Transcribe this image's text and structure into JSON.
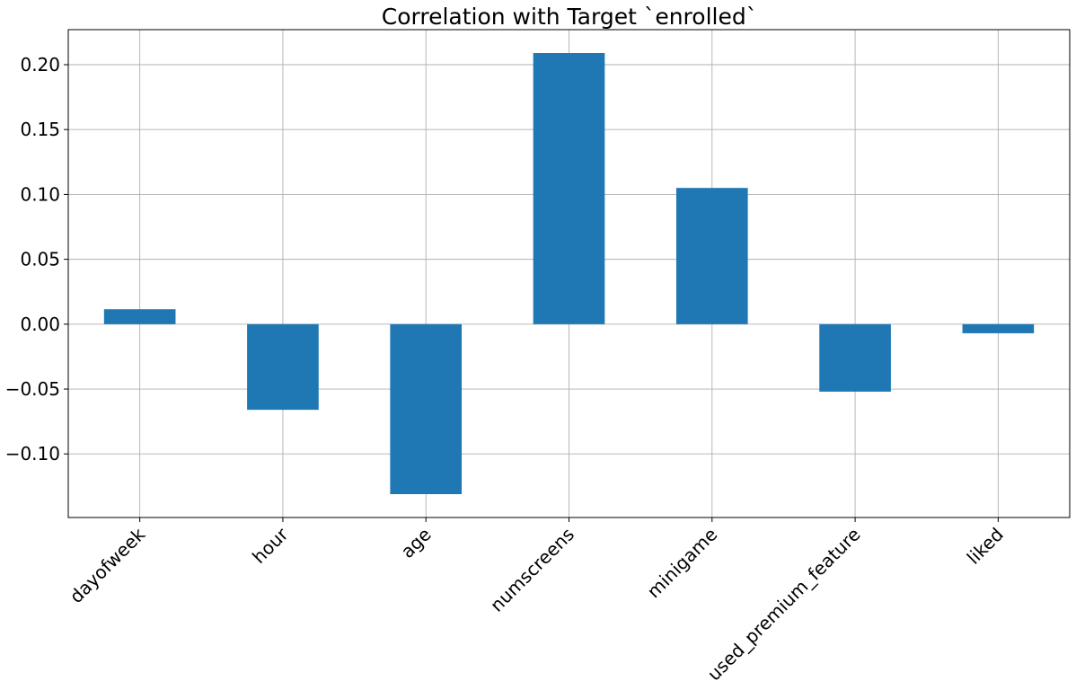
{
  "chart_data": {
    "type": "bar",
    "title": "Correlation with Target `enrolled`",
    "xlabel": "",
    "ylabel": "",
    "categories": [
      "dayofweek",
      "hour",
      "age",
      "numscreens",
      "minigame",
      "used_premium_feature",
      "liked"
    ],
    "values": [
      0.0115,
      -0.066,
      -0.131,
      0.209,
      0.105,
      -0.052,
      -0.007
    ],
    "ylim": [
      -0.149,
      0.227
    ],
    "yticks": [
      -0.1,
      -0.05,
      0.0,
      0.05,
      0.1,
      0.15,
      0.2
    ],
    "ytick_labels": [
      "−0.10",
      "−0.05",
      "0.00",
      "0.05",
      "0.10",
      "0.15",
      "0.20"
    ],
    "grid": true,
    "bar_color": "#1f77b4",
    "grid_color": "#b0b0b0"
  }
}
